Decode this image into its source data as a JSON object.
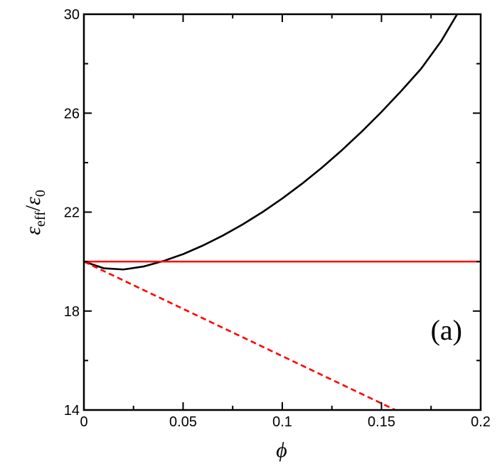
{
  "chart_data": {
    "type": "line",
    "title": "",
    "panel_label": "(a)",
    "xlabel": "ϕ",
    "ylabel": {
      "prefix": "ε",
      "prefix_sub": "eff",
      "slash": "/",
      "suffix": "ε",
      "suffix_sub": "0"
    },
    "xlim": [
      0,
      0.2
    ],
    "ylim": [
      14,
      30
    ],
    "xticks": [
      0,
      0.05,
      0.1,
      0.15,
      0.2
    ],
    "xtick_labels": [
      "0",
      "0.05",
      "0.1",
      "0.15",
      "0.2"
    ],
    "yticks": [
      14,
      18,
      22,
      26,
      30
    ],
    "ytick_labels": [
      "14",
      "18",
      "22",
      "26",
      "30"
    ],
    "grid": false,
    "series": [
      {
        "color": "#000000",
        "style": "solid",
        "x": [
          0,
          0.01,
          0.02,
          0.03,
          0.04,
          0.05,
          0.06,
          0.07,
          0.08,
          0.09,
          0.1,
          0.11,
          0.12,
          0.13,
          0.14,
          0.15,
          0.16,
          0.17,
          0.18,
          0.188
        ],
        "y": [
          20.0,
          19.73,
          19.68,
          19.8,
          20.02,
          20.3,
          20.65,
          21.05,
          21.5,
          22.0,
          22.55,
          23.15,
          23.8,
          24.5,
          25.25,
          26.05,
          26.9,
          27.8,
          28.9,
          29.98
        ]
      },
      {
        "color": "#ff0000",
        "style": "solid",
        "x": [
          0,
          0.2
        ],
        "y": [
          20.0,
          20.0
        ]
      },
      {
        "color": "#ff0000",
        "style": "dashed",
        "x": [
          0,
          0.157
        ],
        "y": [
          20.0,
          14.0
        ]
      }
    ]
  }
}
